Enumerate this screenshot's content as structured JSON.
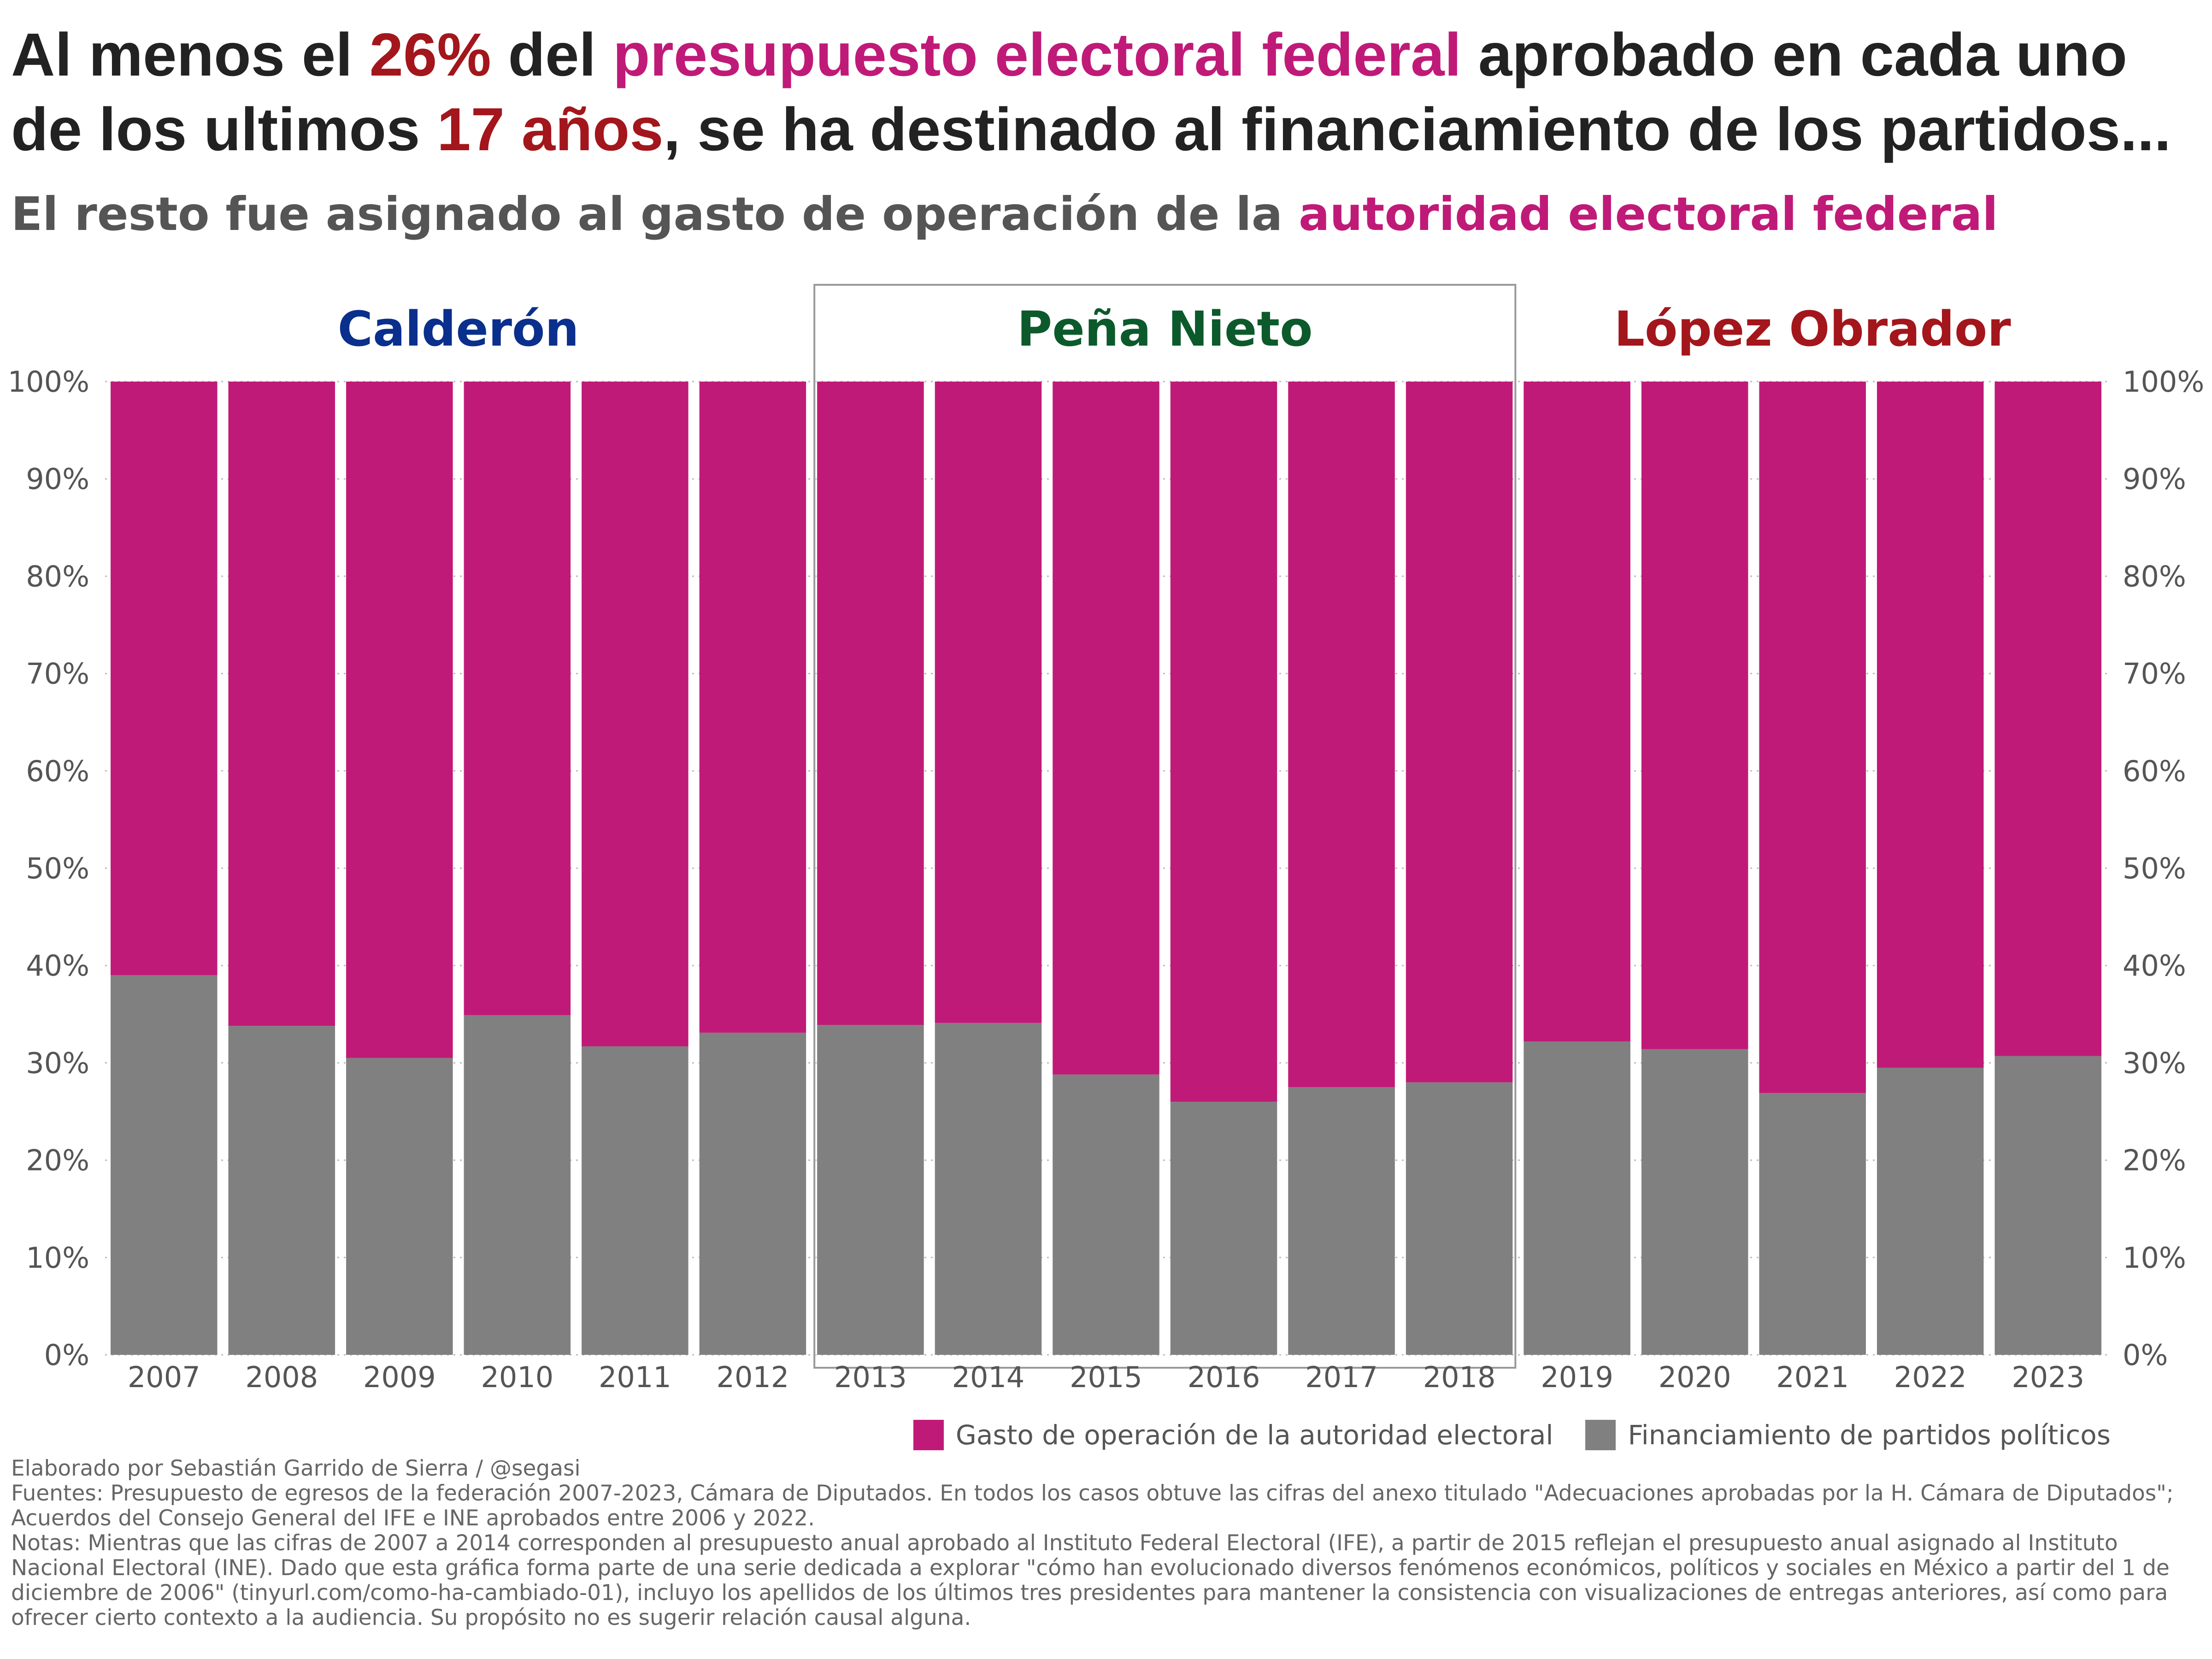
{
  "title": {
    "part1": "Al menos el ",
    "pct": "26%",
    "part2": " del ",
    "budget": "presupuesto electoral federal",
    "part3": " aprobado en cada uno de los ultimos ",
    "years": "17 años",
    "part4": ", se ha destinado al financiamiento de los partidos..."
  },
  "subtitle": {
    "part1": "El resto fue asignado al gasto de operación de la ",
    "authority": "autoridad electoral federal"
  },
  "colors": {
    "operation": "#c01a78",
    "parties": "#808080",
    "calderon": "#0a2f8c",
    "pena_nieto": "#0c5a2c",
    "lopez_obrador": "#a3161c",
    "highlight_red": "#a3161c",
    "highlight_pink": "#c01a78"
  },
  "chart_data": {
    "type": "bar",
    "stacked": true,
    "categories": [
      "2007",
      "2008",
      "2009",
      "2010",
      "2011",
      "2012",
      "2013",
      "2014",
      "2015",
      "2016",
      "2017",
      "2018",
      "2019",
      "2020",
      "2021",
      "2022",
      "2023"
    ],
    "series": [
      {
        "name": "Financiamiento de partidos políticos",
        "values": [
          39,
          33.8,
          30.5,
          34.9,
          31.7,
          33.1,
          33.9,
          34.1,
          28.8,
          26.0,
          27.5,
          28.0,
          32.2,
          31.4,
          26.9,
          29.5,
          30.7
        ]
      },
      {
        "name": "Gasto de operación de la autoridad electoral",
        "values": [
          61,
          66.2,
          69.5,
          65.1,
          68.3,
          66.9,
          66.1,
          65.9,
          71.2,
          74.0,
          72.5,
          72.0,
          67.8,
          68.6,
          73.1,
          70.5,
          69.3
        ]
      }
    ],
    "ylim": [
      0,
      100
    ],
    "yticks": [
      "0%",
      "10%",
      "20%",
      "30%",
      "40%",
      "50%",
      "60%",
      "70%",
      "80%",
      "90%",
      "100%"
    ],
    "grid": true,
    "legend_position": "bottom-right",
    "periods": [
      {
        "label": "Calderón",
        "from": "2007",
        "to": "2012",
        "color": "#0a2f8c",
        "boxed": false
      },
      {
        "label": "Peña Nieto",
        "from": "2013",
        "to": "2018",
        "color": "#0c5a2c",
        "boxed": true
      },
      {
        "label": "López Obrador",
        "from": "2019",
        "to": "2023",
        "color": "#a3161c",
        "boxed": false
      }
    ]
  },
  "legend": {
    "operation": "Gasto de operación de la autoridad electoral",
    "parties": "Financiamiento de partidos políticos"
  },
  "footer": {
    "credit": "Elaborado por Sebastián Garrido de Sierra / @segasi",
    "sources": "Fuentes: Presupuesto de egresos de la federación 2007-2023, Cámara de Diputados. En todos los casos obtuve las cifras del anexo titulado \"Adecuaciones aprobadas por la H. Cámara de Diputados\"; Acuerdos del Consejo General del IFE e INE aprobados entre 2006 y 2022.",
    "notes": "Notas: Mientras que las cifras de 2007 a 2014 corresponden al presupuesto anual aprobado al Instituto Federal Electoral (IFE), a partir de 2015 reflejan el presupuesto anual asignado al Instituto Nacional Electoral (INE). Dado que esta gráfica forma parte de una serie dedicada a explorar \"cómo han evolucionado diversos fenómenos económicos, políticos y sociales en México a partir del 1 de diciembre de 2006\" (tinyurl.com/como-ha-cambiado-01), incluyo los apellidos de los últimos tres presidentes para mantener la consistencia con visualizaciones de entregas anteriores, así como para ofrecer cierto contexto a la audiencia. Su propósito no es sugerir relación causal alguna."
  }
}
